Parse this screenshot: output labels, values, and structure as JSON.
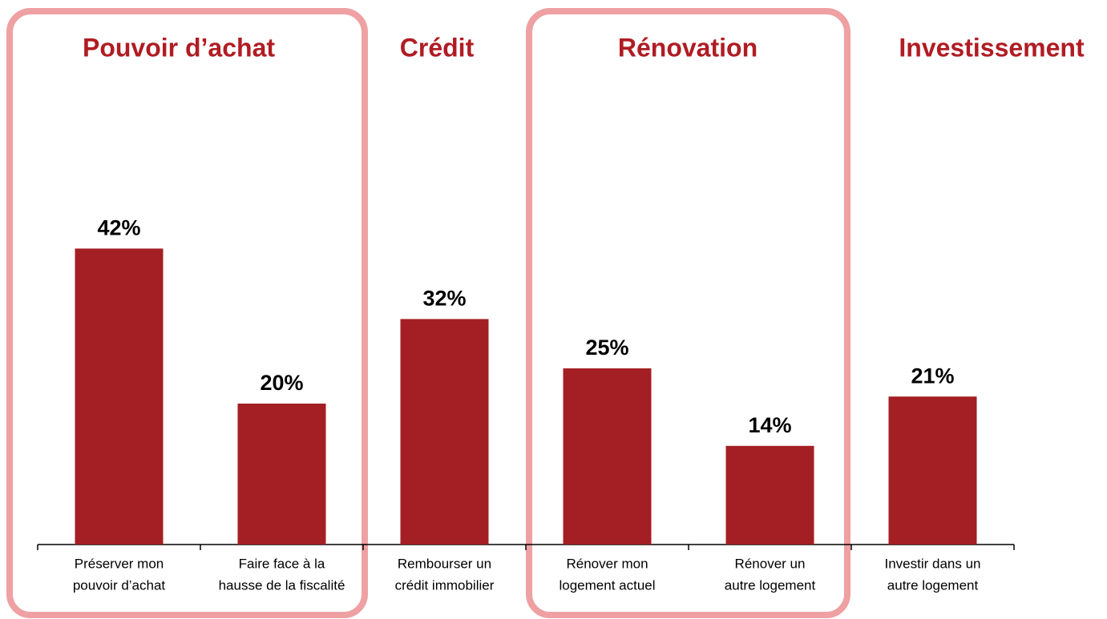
{
  "chart_data": {
    "type": "bar",
    "groups": [
      "Pouvoir d’achat",
      "Crédit",
      "Rénovation",
      "Investissement"
    ],
    "categories": [
      [
        "Préserver mon",
        "pouvoir d’achat"
      ],
      [
        "Faire face à la",
        "hausse de la fiscalité"
      ],
      [
        "Rembourser un",
        "crédit immobilier"
      ],
      [
        "Rénover mon",
        "logement actuel"
      ],
      [
        "Rénover un",
        "autre logement"
      ],
      [
        "Investir dans un",
        "autre logement"
      ]
    ],
    "values": [
      42,
      20,
      32,
      25,
      14,
      21
    ],
    "value_labels": [
      "42%",
      "20%",
      "32%",
      "25%",
      "14%",
      "21%"
    ],
    "color": "#a31f23",
    "ylim": [
      0,
      50
    ]
  }
}
